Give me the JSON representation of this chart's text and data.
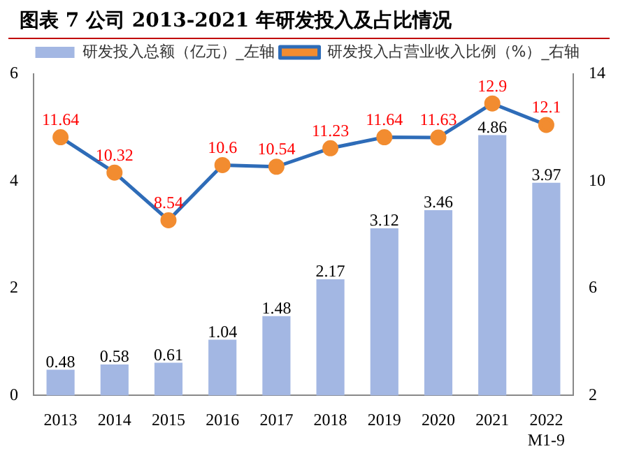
{
  "chart_data": {
    "type": "bar",
    "title": "图表 7 公司 2013-2021 年研发投入及占比情况",
    "categories": [
      "2013",
      "2014",
      "2015",
      "2016",
      "2017",
      "2018",
      "2019",
      "2020",
      "2021",
      "2022\nM1-9"
    ],
    "series": [
      {
        "name": "研发投入总额（亿元）_左轴",
        "color": "#a3b7e3",
        "values": [
          0.48,
          0.58,
          0.61,
          1.04,
          1.48,
          2.17,
          3.12,
          3.46,
          4.86,
          3.97
        ]
      },
      {
        "name": "研发投入占营业收入比例（%）_右轴",
        "type": "line",
        "axis": "y2",
        "color": "#2e6cb8",
        "values": [
          11.64,
          10.32,
          8.54,
          10.6,
          10.54,
          11.23,
          11.64,
          11.63,
          12.9,
          12.1
        ]
      }
    ],
    "ylim": [
      0,
      6
    ],
    "yticks": [
      0,
      2,
      4,
      6
    ],
    "y2lim": [
      2,
      14
    ],
    "y2ticks": [
      2,
      6,
      10,
      14
    ],
    "data_labels": true,
    "legend": "top",
    "grid": false,
    "marker": "circle"
  }
}
